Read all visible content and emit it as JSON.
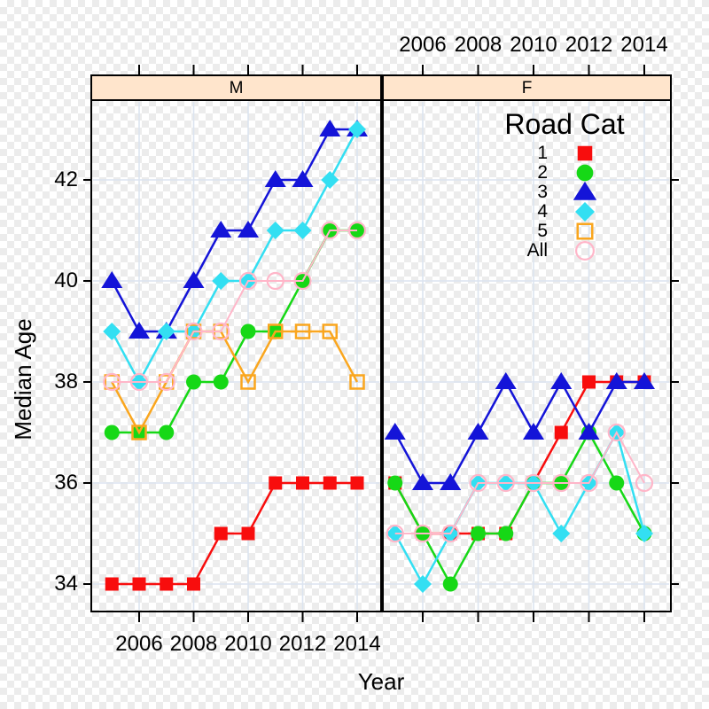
{
  "figure": {
    "strip_labels": [
      "M",
      "F"
    ],
    "background": "transparent-checkerboard",
    "strip_fill": "#ffe5cc"
  },
  "legend": {
    "title": "Road Cat",
    "entries": [
      {
        "label": "1",
        "symbol": "filled-square",
        "color": "#f80d0d"
      },
      {
        "label": "2",
        "symbol": "filled-circle",
        "color": "#16d816"
      },
      {
        "label": "3",
        "symbol": "filled-triangle",
        "color": "#1414d8"
      },
      {
        "label": "4",
        "symbol": "filled-diamond",
        "color": "#33dff2"
      },
      {
        "label": "5",
        "symbol": "open-square",
        "color": "#faa61e"
      },
      {
        "label": "All",
        "symbol": "open-circle",
        "color": "#ffb6c9"
      }
    ]
  },
  "chart_data": {
    "type": "line",
    "title": "",
    "xlabel": "Year",
    "ylabel": "Median Age",
    "x": [
      2005,
      2006,
      2007,
      2008,
      2009,
      2010,
      2011,
      2012,
      2013,
      2014
    ],
    "xticks": [
      2006,
      2008,
      2010,
      2012,
      2014
    ],
    "yticks": [
      34,
      36,
      38,
      40,
      42
    ],
    "ylim": [
      33.5,
      43.6
    ],
    "grid": true,
    "legend_position": "inside-top-right-of-F-panel",
    "panels": [
      {
        "label": "M",
        "series": [
          {
            "name": "1",
            "values": [
              34,
              34,
              34,
              34,
              35,
              35,
              36,
              36,
              36,
              36
            ]
          },
          {
            "name": "2",
            "values": [
              37,
              37,
              37,
              38,
              38,
              39,
              39,
              40,
              41,
              41
            ]
          },
          {
            "name": "3",
            "values": [
              40,
              39,
              39,
              40,
              41,
              41,
              42,
              42,
              43,
              43
            ]
          },
          {
            "name": "4",
            "values": [
              39,
              38,
              39,
              39,
              40,
              40,
              41,
              41,
              42,
              43
            ]
          },
          {
            "name": "5",
            "values": [
              38,
              37,
              38,
              39,
              39,
              38,
              39,
              39,
              39,
              38
            ]
          },
          {
            "name": "All",
            "values": [
              38,
              38,
              38,
              39,
              39,
              40,
              40,
              40,
              41,
              41
            ]
          }
        ]
      },
      {
        "label": "F",
        "series": [
          {
            "name": "1",
            "values": [
              36,
              35,
              35,
              35,
              35,
              36,
              37,
              38,
              38,
              38
            ]
          },
          {
            "name": "2",
            "values": [
              36,
              35,
              34,
              35,
              35,
              36,
              36,
              37,
              36,
              35
            ]
          },
          {
            "name": "3",
            "values": [
              37,
              36,
              36,
              37,
              38,
              37,
              38,
              37,
              38,
              38
            ]
          },
          {
            "name": "4",
            "values": [
              35,
              34,
              35,
              36,
              36,
              36,
              35,
              36,
              37,
              35
            ]
          },
          {
            "name": "5",
            "values": []
          },
          {
            "name": "All",
            "values": [
              35,
              35,
              35,
              36,
              36,
              36,
              36,
              36,
              37,
              36
            ]
          }
        ]
      }
    ]
  }
}
